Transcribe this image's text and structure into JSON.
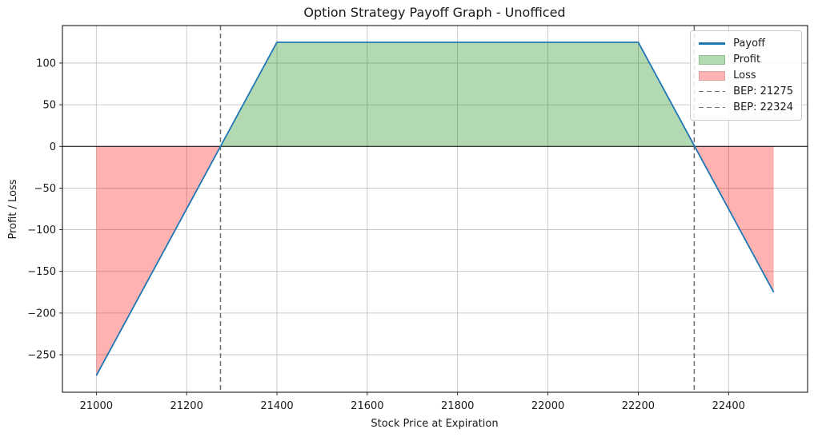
{
  "chart_data": {
    "type": "line",
    "title": "Option Strategy Payoff Graph - Unofficed",
    "xlabel": "Stock Price at Expiration",
    "ylabel": "Profit / Loss",
    "xlim": [
      20925,
      22575
    ],
    "ylim": [
      -295,
      145
    ],
    "x_ticks": [
      21000,
      21200,
      21400,
      21600,
      21800,
      22000,
      22200,
      22400
    ],
    "y_ticks": [
      -250,
      -200,
      -150,
      -100,
      -50,
      0,
      50,
      100
    ],
    "grid": true,
    "baseline": 0,
    "series": [
      {
        "name": "Payoff",
        "color": "#1f77b4",
        "points": [
          [
            21000,
            -275
          ],
          [
            21400,
            125
          ],
          [
            22200,
            125
          ],
          [
            22500,
            -175
          ]
        ]
      }
    ],
    "breakevens": [
      {
        "label": "BEP: 21275",
        "value": 21275
      },
      {
        "label": "BEP: 22324",
        "value": 22324
      }
    ],
    "regions": {
      "profit": {
        "label": "Profit",
        "color": "#008000",
        "alpha": 0.3
      },
      "loss": {
        "label": "Loss",
        "color": "#ff0000",
        "alpha": 0.3
      }
    },
    "legend": {
      "position": "upper right",
      "items": [
        {
          "label": "Payoff",
          "swatch": "line",
          "color": "#1f77b4"
        },
        {
          "label": "Profit",
          "swatch": "patch",
          "color": "#b3d9b3",
          "border": "#8fbf8f"
        },
        {
          "label": "Loss",
          "swatch": "patch",
          "color": "#ffb3b3",
          "border": "#d9a0a0"
        },
        {
          "label": "BEP: 21275",
          "swatch": "dashed",
          "color": "#757575"
        },
        {
          "label": "BEP: 22324",
          "swatch": "dashed",
          "color": "#757575"
        }
      ]
    },
    "colors": {
      "grid": "#bdbdbd",
      "spine": "#000000",
      "zero_line": "#000000",
      "breakeven_line": "#6e6e6e",
      "text": "#1a1a1a"
    }
  }
}
